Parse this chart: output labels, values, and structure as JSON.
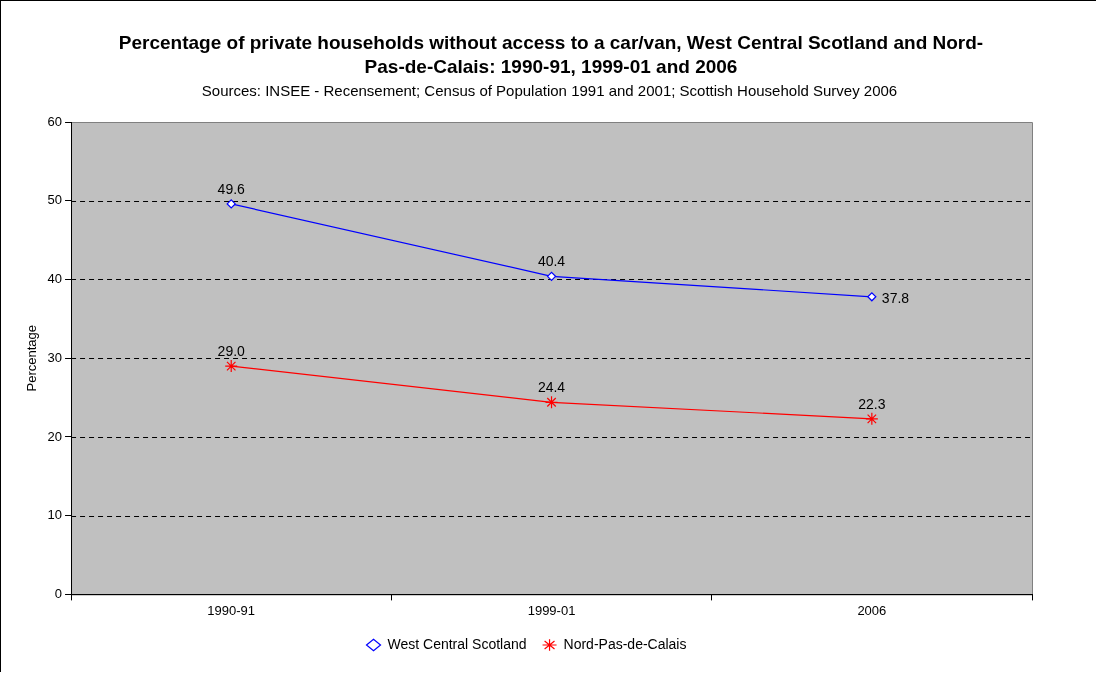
{
  "chart_data": {
    "type": "line",
    "title": "Percentage of private households without access to a car/van, West Central Scotland and Nord-Pas-de-Calais: 1990-91, 1999-01 and 2006",
    "subtitle": "Sources: INSEE - Recensement; Census of Population 1991 and 2001; Scottish Household Survey 2006",
    "ylabel": "Percentage",
    "categories": [
      "1990-91",
      "1999-01",
      "2006"
    ],
    "series": [
      {
        "name": "West Central Scotland",
        "color": "#0000ff",
        "marker": "diamond",
        "values": [
          49.6,
          40.4,
          37.8
        ],
        "value_labels": [
          "49.6",
          "40.4",
          "37.8"
        ]
      },
      {
        "name": "Nord-Pas-de-Calais",
        "color": "#ff0000",
        "marker": "cross",
        "values": [
          29.0,
          24.4,
          22.3
        ],
        "value_labels": [
          "29.0",
          "24.4",
          "22.3"
        ]
      }
    ],
    "ylim": [
      0,
      60
    ],
    "yticks": [
      0,
      10,
      20,
      30,
      40,
      50,
      60
    ],
    "grid": "y",
    "legend": "bottom"
  }
}
